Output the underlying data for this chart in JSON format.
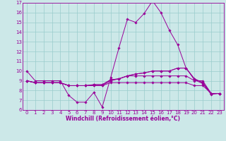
{
  "xlabel": "Windchill (Refroidissement éolien,°C)",
  "ylabel": "",
  "bg_color": "#cce8e8",
  "line_color": "#990099",
  "grid_color": "#99cccc",
  "xlim": [
    -0.5,
    23.5
  ],
  "ylim": [
    6,
    17
  ],
  "xticks": [
    0,
    1,
    2,
    3,
    4,
    5,
    6,
    7,
    8,
    9,
    10,
    11,
    12,
    13,
    14,
    15,
    16,
    17,
    18,
    19,
    20,
    21,
    22,
    23
  ],
  "yticks": [
    6,
    7,
    8,
    9,
    10,
    11,
    12,
    13,
    14,
    15,
    16,
    17
  ],
  "lines": [
    [
      10,
      9,
      9,
      9,
      9,
      7.5,
      6.8,
      6.8,
      7.8,
      6.3,
      9.3,
      12.4,
      15.3,
      15.0,
      15.9,
      17.2,
      16.0,
      14.2,
      12.7,
      10.3,
      9.1,
      8.7,
      7.6,
      7.7
    ],
    [
      9.0,
      8.8,
      8.8,
      8.8,
      8.8,
      8.5,
      8.5,
      8.5,
      8.5,
      8.5,
      9.0,
      9.2,
      9.5,
      9.5,
      9.5,
      9.5,
      9.5,
      9.5,
      9.5,
      9.5,
      9.0,
      9.0,
      7.7,
      7.7
    ],
    [
      9.0,
      8.8,
      8.8,
      8.8,
      8.8,
      8.5,
      8.5,
      8.5,
      8.6,
      8.6,
      9.1,
      9.2,
      9.5,
      9.7,
      9.8,
      10.0,
      10.0,
      10.0,
      10.3,
      10.3,
      9.2,
      8.8,
      7.7,
      7.7
    ],
    [
      9.0,
      8.8,
      8.8,
      8.8,
      8.8,
      8.5,
      8.5,
      8.5,
      8.6,
      8.6,
      9.1,
      9.2,
      9.5,
      9.7,
      9.8,
      10.0,
      10.0,
      10.0,
      10.3,
      10.3,
      9.2,
      8.8,
      7.7,
      7.7
    ],
    [
      9.0,
      8.8,
      8.8,
      8.8,
      8.8,
      8.5,
      8.5,
      8.5,
      8.5,
      8.5,
      8.8,
      8.8,
      8.8,
      8.8,
      8.8,
      8.8,
      8.8,
      8.8,
      8.8,
      8.8,
      8.5,
      8.5,
      7.7,
      7.7
    ]
  ],
  "tick_fontsize": 5.0,
  "xlabel_fontsize": 5.5,
  "figsize": [
    3.2,
    2.0
  ],
  "dpi": 100
}
